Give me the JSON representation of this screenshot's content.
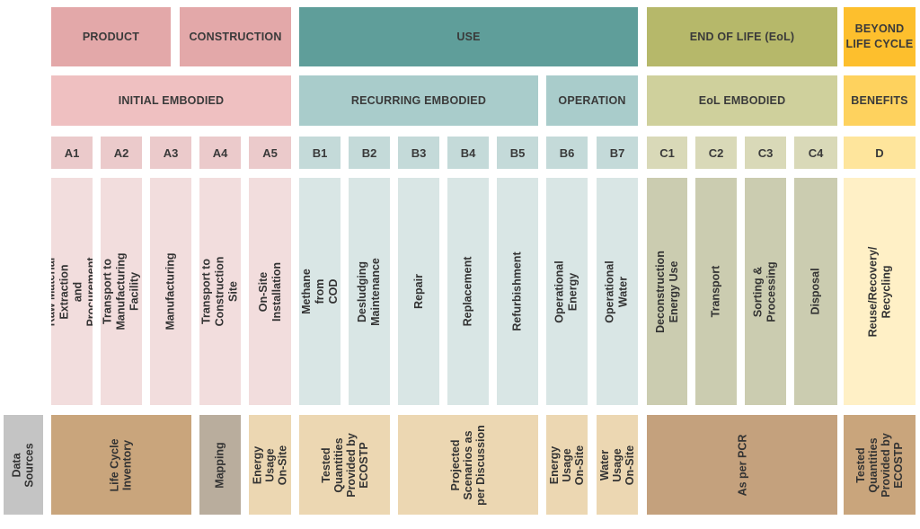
{
  "stages": {
    "product": "PRODUCT",
    "construction": "CONSTRUCTION",
    "use": "USE",
    "end_of_life": "END OF LIFE (EoL)",
    "beyond": "BEYOND\nLIFE CYCLE"
  },
  "categories": {
    "initial_embodied": "INITIAL EMBODIED",
    "recurring_embodied": "RECURRING EMBODIED",
    "operation": "OPERATION",
    "eol_embodied": "EoL EMBODIED",
    "benefits": "BENEFITS"
  },
  "modules": [
    {
      "code": "A1",
      "desc": "Raw Material Extraction and\nProcurement"
    },
    {
      "code": "A2",
      "desc": "Transport to Manufacturing Facility"
    },
    {
      "code": "A3",
      "desc": "Manufacturing"
    },
    {
      "code": "A4",
      "desc": "Transport to Construction Site"
    },
    {
      "code": "A5",
      "desc": "On-Site Installation"
    },
    {
      "code": "B1",
      "desc": "Methane from COD"
    },
    {
      "code": "B2",
      "desc": "Desludging Maintenance"
    },
    {
      "code": "B3",
      "desc": "Repair"
    },
    {
      "code": "B4",
      "desc": "Replacement"
    },
    {
      "code": "B5",
      "desc": "Refurbishment"
    },
    {
      "code": "B6",
      "desc": "Operational Energy"
    },
    {
      "code": "B7",
      "desc": "Operational Water"
    },
    {
      "code": "C1",
      "desc": "Deconstruction Energy Use"
    },
    {
      "code": "C2",
      "desc": "Transport"
    },
    {
      "code": "C3",
      "desc": "Sorting & Processing"
    },
    {
      "code": "C4",
      "desc": "Disposal"
    },
    {
      "code": "D",
      "desc": "Reuse/Recovery/ Recycling"
    }
  ],
  "data_sources": {
    "label": "Data Sources",
    "life_cycle_inventory": "Life Cycle\nInventory",
    "mapping": "Mapping",
    "energy_usage_onsite_a5": "Energy Usage\nOn-Site",
    "tested_quantities_b1b2": "Tested\nQuantities\nProvided by\nECOSTP",
    "projected_scenarios": "Projected\nScenarios as\nper Discussion",
    "energy_usage_onsite_b6": "Energy Usage\nOn-Site",
    "water_usage_onsite": "Water Usage\nOn-Site",
    "as_per_pcr": "As per PCR",
    "tested_quantities_d": "Tested\nQuantities\nProvided by\nECOSTP"
  },
  "colors": {
    "product_stage": "#e3a8a9",
    "use_stage": "#5f9e9a",
    "eol_stage": "#b6b86a",
    "beyond_stage": "#fdbf2d",
    "initial_embodied": "#efc0c1",
    "recurring_embodied": "#a9cccb",
    "eol_embodied": "#cfd09c",
    "benefits": "#fed25e",
    "module_a": "#ebcacb",
    "module_b": "#c4dad9",
    "module_c": "#d9d9b8",
    "module_d": "#fee59c",
    "desc_a": "#f2dddd",
    "desc_b": "#d9e6e5",
    "desc_c": "#cbccb0",
    "desc_d": "#fff0c6",
    "ds_label": "#c4c4c4",
    "ds_inventory": "#c9a57c",
    "ds_mapping": "#b9ad9d",
    "ds_light": "#ecd7b2",
    "ds_pcr": "#c4a17d",
    "ds_d": "#c9a57c"
  }
}
